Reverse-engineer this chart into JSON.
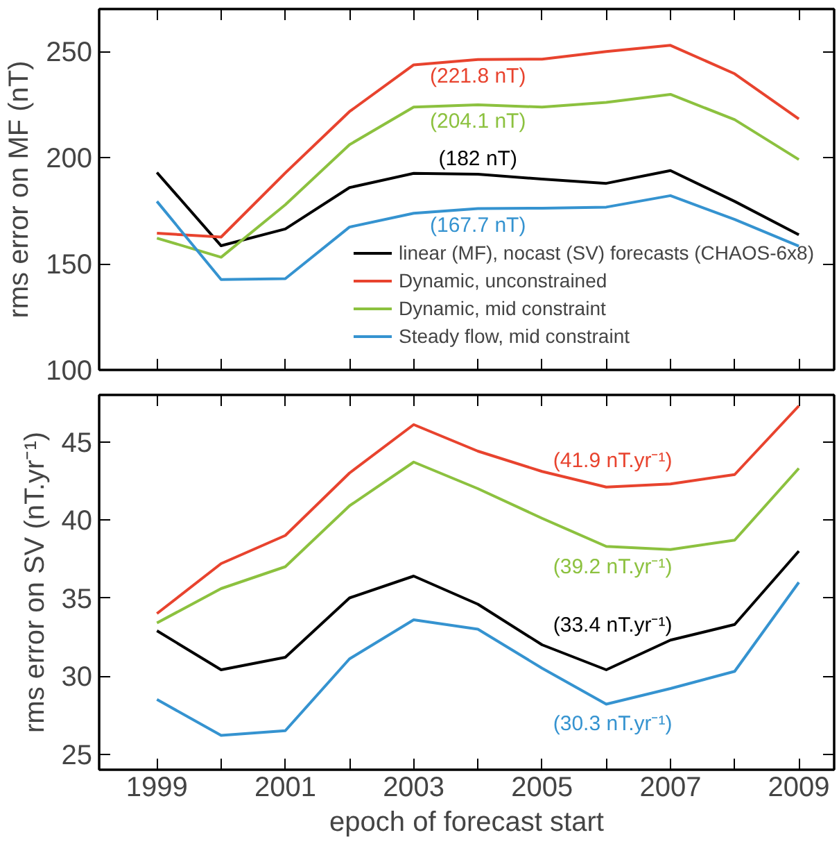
{
  "chart_data": [
    {
      "type": "line",
      "ylabel": "rms error on MF (nT)",
      "x": [
        1999,
        2000,
        2001,
        2002,
        2003,
        2004,
        2005,
        2006,
        2007,
        2008,
        2009
      ],
      "xlim": [
        1998.1,
        2009.55
      ],
      "ylim": [
        100,
        270
      ],
      "xticks": [
        1999,
        {
          "value": 2000,
          "label": null
        },
        2001,
        {
          "value": 2002,
          "label": null
        },
        2003,
        {
          "value": 2004,
          "label": null
        },
        2005,
        {
          "value": 2006,
          "label": null
        },
        2007,
        {
          "value": 2008,
          "label": null
        },
        2009
      ],
      "yticks": [
        100,
        150,
        200,
        250
      ],
      "tick_labels": "y",
      "grid": false,
      "legend": "bottom right",
      "line_style": "solid",
      "series": [
        {
          "name": "linear (MF), nocast (SV) forecasts (CHAOS-6x8)",
          "color": "#000000",
          "values": [
            193.0,
            158.5,
            166.4,
            185.9,
            192.6,
            192.2,
            189.9,
            187.9,
            193.9,
            179.4,
            163.7
          ]
        },
        {
          "name": "Dynamic, unconstrained",
          "color": "#e8432e",
          "values": [
            164.4,
            162.6,
            192.8,
            221.7,
            243.7,
            246.2,
            246.4,
            250.0,
            252.9,
            239.5,
            218.2
          ]
        },
        {
          "name": "Dynamic, mid constraint",
          "color": "#8cc13f",
          "values": [
            162.1,
            153.1,
            177.8,
            206.1,
            223.8,
            224.9,
            223.8,
            226.0,
            229.8,
            217.9,
            199.1
          ]
        },
        {
          "name": "Steady flow, mid constraint",
          "color": "#3593d0",
          "values": [
            179.4,
            142.6,
            143.0,
            167.3,
            173.8,
            176.0,
            176.2,
            176.7,
            182.1,
            170.9,
            158.3
          ]
        }
      ],
      "annotations": [
        "(221.8 nT)",
        "(204.1 nT)",
        "(182 nT)",
        "(167.7 nT)"
      ]
    },
    {
      "type": "line",
      "ylabel": "rms error on SV (nT.yr⁻¹)",
      "xlabel": "epoch of forecast start",
      "x": [
        1999,
        2000,
        2001,
        2002,
        2003,
        2004,
        2005,
        2006,
        2007,
        2008,
        2009
      ],
      "xlim": [
        1998.1,
        2009.55
      ],
      "ylim": [
        24,
        48
      ],
      "xticks": [
        1999,
        {
          "value": 2000,
          "label": null
        },
        2001,
        {
          "value": 2002,
          "label": null
        },
        2003,
        {
          "value": 2004,
          "label": null
        },
        2005,
        {
          "value": 2006,
          "label": null
        },
        2007,
        {
          "value": 2008,
          "label": null
        },
        2009
      ],
      "yticks": [
        25,
        30,
        35,
        40,
        45
      ],
      "grid": false,
      "line_style": "solid",
      "series": [
        {
          "color": "#000000",
          "values": [
            32.9,
            30.4,
            31.2,
            35.0,
            36.4,
            34.6,
            32.0,
            30.4,
            32.3,
            33.3,
            38.0
          ]
        },
        {
          "color": "#e8432e",
          "values": [
            34.0,
            37.2,
            39.0,
            43.0,
            46.1,
            44.4,
            43.1,
            42.1,
            42.3,
            42.9,
            47.3
          ]
        },
        {
          "color": "#8cc13f",
          "values": [
            33.4,
            35.6,
            37.0,
            40.9,
            43.7,
            42.0,
            40.1,
            38.3,
            38.1,
            38.7,
            43.3
          ]
        },
        {
          "color": "#3593d0",
          "values": [
            28.5,
            26.2,
            26.5,
            31.1,
            33.6,
            33.0,
            30.5,
            28.2,
            29.2,
            30.3,
            36.0
          ]
        }
      ],
      "annotations": [
        "(41.9 nT.yr⁻¹)",
        "(39.2 nT.yr⁻¹)",
        "(33.4 nT.yr⁻¹)",
        "(30.3 nT.yr⁻¹)"
      ]
    }
  ]
}
